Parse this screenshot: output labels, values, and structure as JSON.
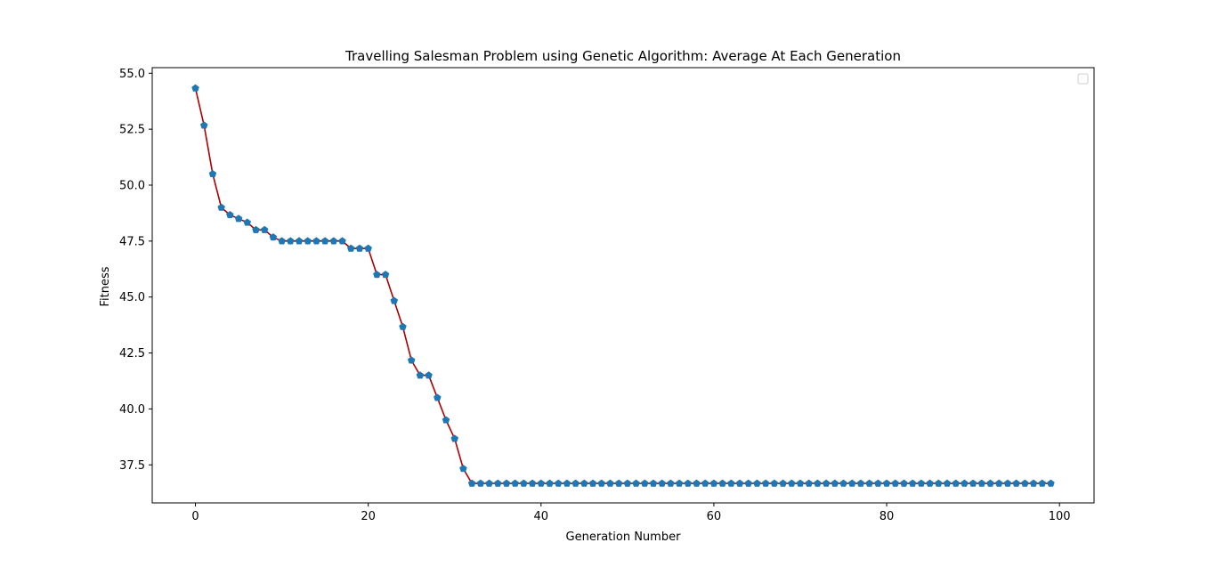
{
  "chart_data": {
    "type": "line",
    "title": "Travelling Salesman Problem using Genetic Algorithm: Average At Each Generation",
    "xlabel": "Generation Number",
    "ylabel": "Fitness",
    "xlim": [
      -5,
      104
    ],
    "ylim": [
      35.8,
      55.25
    ],
    "xticks": [
      0,
      20,
      40,
      60,
      80,
      100
    ],
    "xtick_labels": [
      "0",
      "20",
      "40",
      "60",
      "80",
      "100"
    ],
    "yticks": [
      37.5,
      40.0,
      42.5,
      45.0,
      47.5,
      50.0,
      52.5,
      55.0
    ],
    "ytick_labels": [
      "37.5",
      "40.0",
      "42.5",
      "45.0",
      "47.5",
      "50.0",
      "52.5",
      "55.0"
    ],
    "grid": false,
    "legend": "upper-right (empty)",
    "line_color": "#aa0000",
    "marker_color": "#1f77b4",
    "marker": "pentagon",
    "x": [
      0,
      1,
      2,
      3,
      4,
      5,
      6,
      7,
      8,
      9,
      10,
      11,
      12,
      13,
      14,
      15,
      16,
      17,
      18,
      19,
      20,
      21,
      22,
      23,
      24,
      25,
      26,
      27,
      28,
      29,
      30,
      31,
      32,
      33,
      34,
      35,
      36,
      37,
      38,
      39,
      40,
      41,
      42,
      43,
      44,
      45,
      46,
      47,
      48,
      49,
      50,
      51,
      52,
      53,
      54,
      55,
      56,
      57,
      58,
      59,
      60,
      61,
      62,
      63,
      64,
      65,
      66,
      67,
      68,
      69,
      70,
      71,
      72,
      73,
      74,
      75,
      76,
      77,
      78,
      79,
      80,
      81,
      82,
      83,
      84,
      85,
      86,
      87,
      88,
      89,
      90,
      91,
      92,
      93,
      94,
      95,
      96,
      97,
      98,
      99
    ],
    "series": [
      {
        "values": [
          54.33,
          52.67,
          50.5,
          49.0,
          48.67,
          48.5,
          48.33,
          48.0,
          48.0,
          47.67,
          47.5,
          47.5,
          47.5,
          47.5,
          47.5,
          47.5,
          47.5,
          47.5,
          47.17,
          47.17,
          47.17,
          46.0,
          46.0,
          44.83,
          43.67,
          42.17,
          41.5,
          41.5,
          40.5,
          39.5,
          38.67,
          37.33,
          36.67,
          36.67,
          36.67,
          36.67,
          36.67,
          36.67,
          36.67,
          36.67,
          36.67,
          36.67,
          36.67,
          36.67,
          36.67,
          36.67,
          36.67,
          36.67,
          36.67,
          36.67,
          36.67,
          36.67,
          36.67,
          36.67,
          36.67,
          36.67,
          36.67,
          36.67,
          36.67,
          36.67,
          36.67,
          36.67,
          36.67,
          36.67,
          36.67,
          36.67,
          36.67,
          36.67,
          36.67,
          36.67,
          36.67,
          36.67,
          36.67,
          36.67,
          36.67,
          36.67,
          36.67,
          36.67,
          36.67,
          36.67,
          36.67,
          36.67,
          36.67,
          36.67,
          36.67,
          36.67,
          36.67,
          36.67,
          36.67,
          36.67,
          36.67,
          36.67,
          36.67,
          36.67,
          36.67,
          36.67,
          36.67,
          36.67,
          36.67,
          36.67
        ]
      }
    ]
  }
}
